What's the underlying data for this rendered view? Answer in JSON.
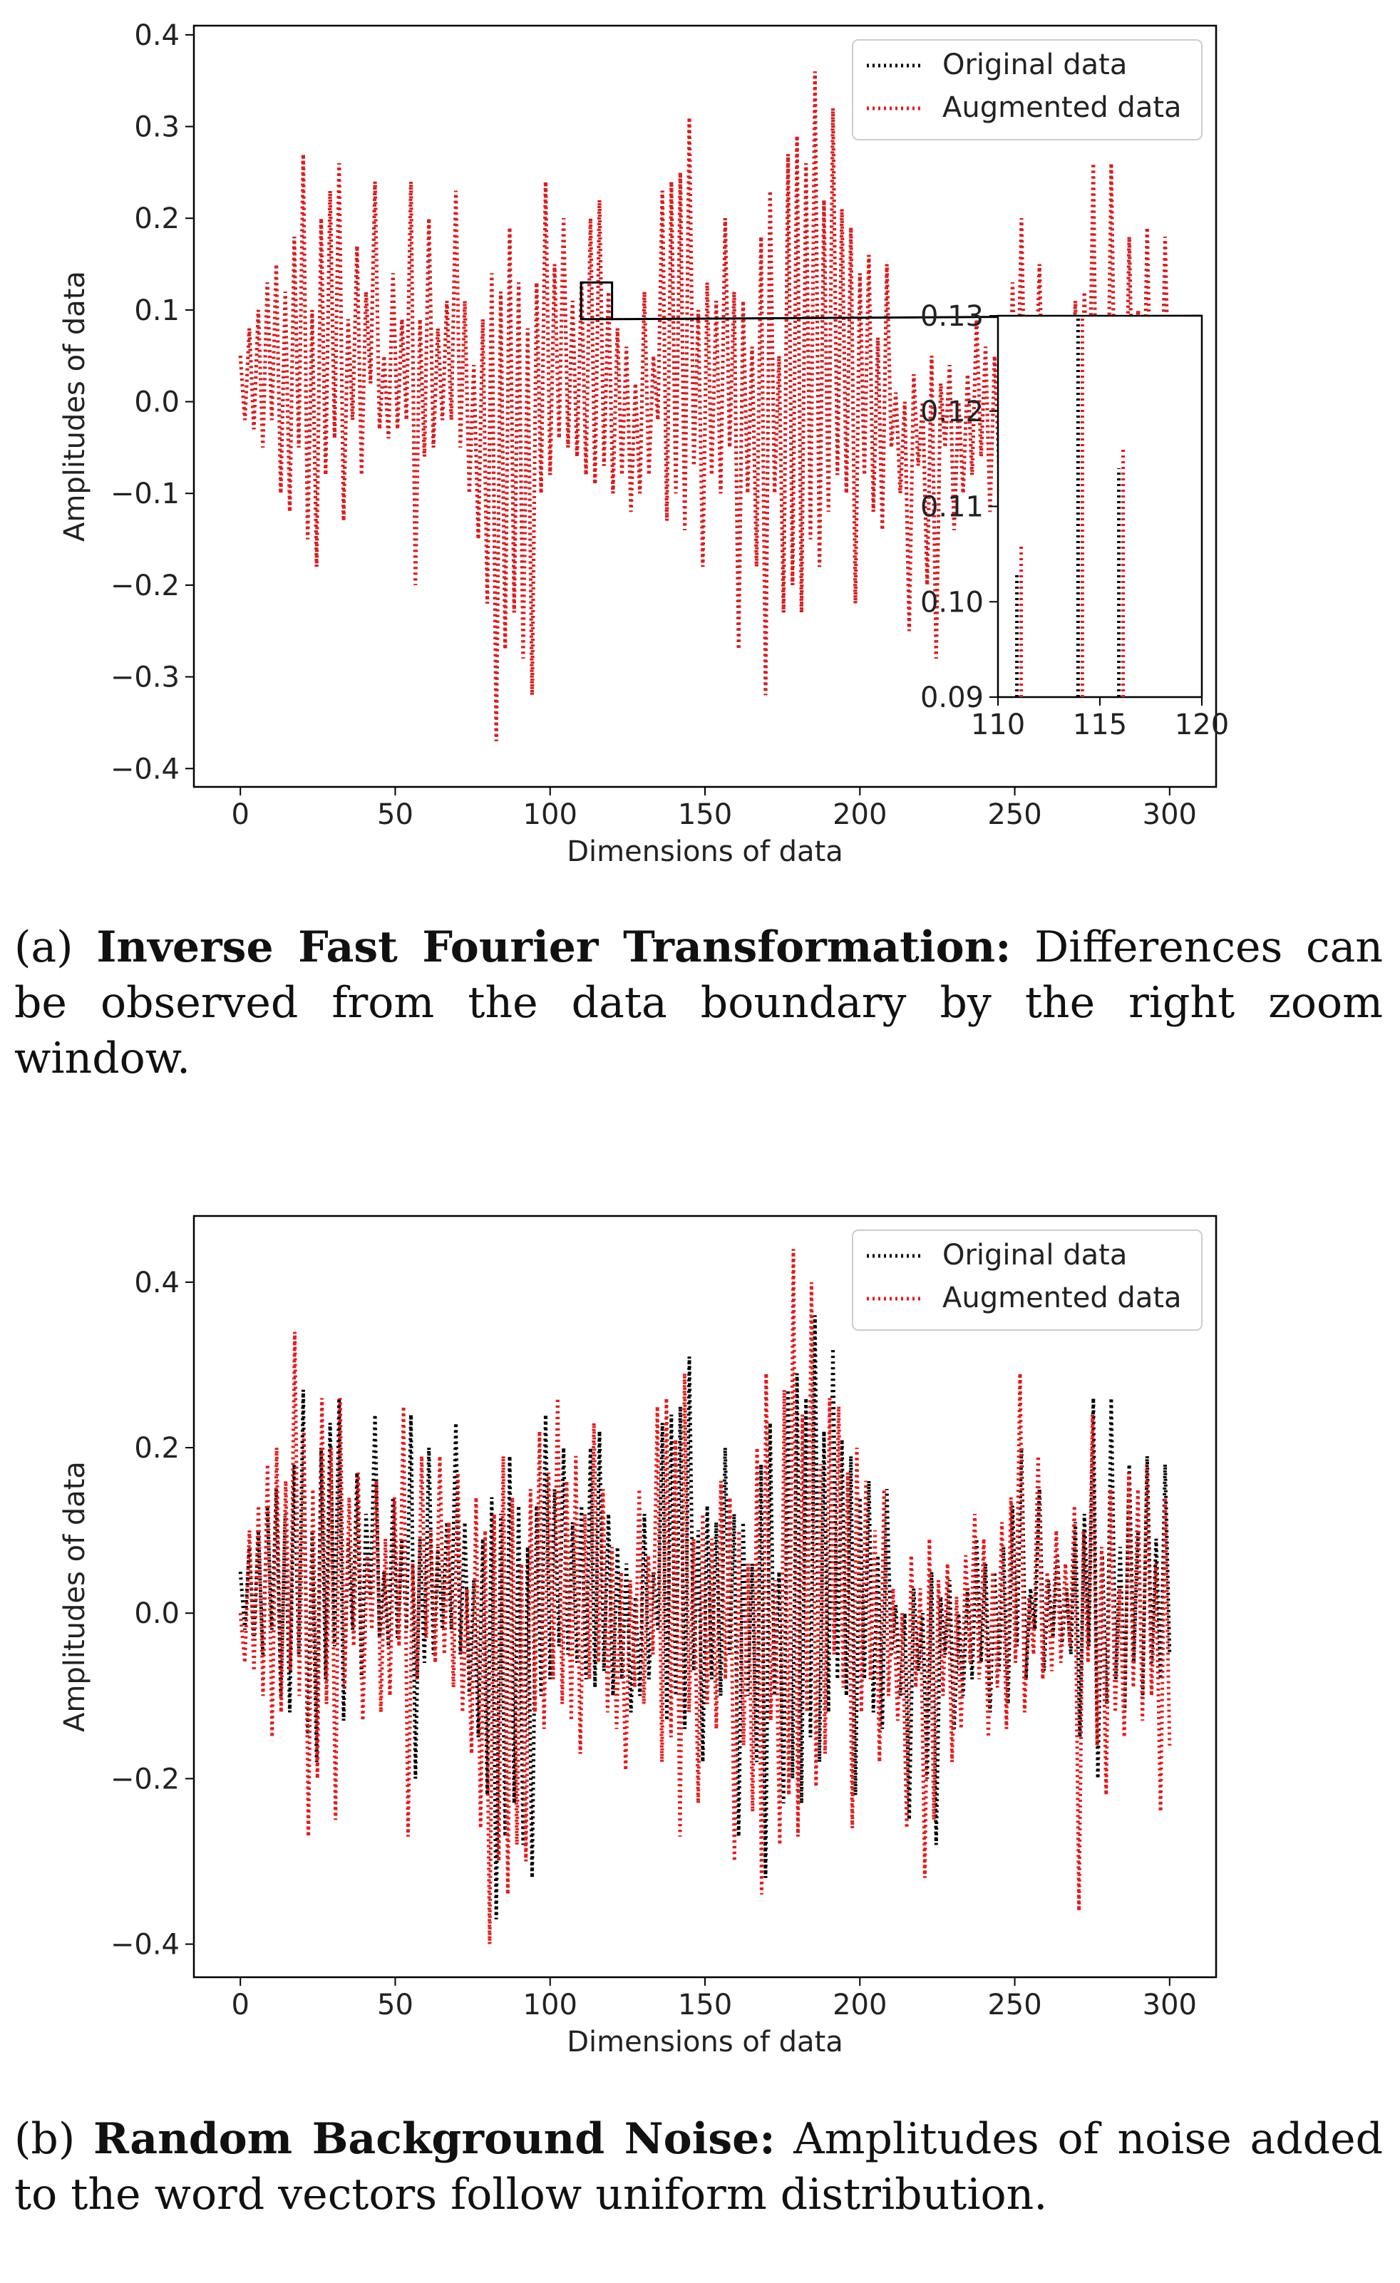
{
  "chart_data": [
    {
      "type": "line",
      "panel": "a",
      "xlabel": "Dimensions of data",
      "ylabel": "Amplitudes of data",
      "xlim": [
        -15,
        315
      ],
      "ylim": [
        -0.42,
        0.41
      ],
      "xticks": [
        0,
        50,
        100,
        150,
        200,
        250,
        300
      ],
      "yticks": [
        -0.4,
        -0.3,
        -0.2,
        -0.1,
        0.0,
        0.1,
        0.2,
        0.3,
        0.4
      ],
      "ytick_labels": [
        "−0.4",
        "−0.3",
        "−0.2",
        "−0.1",
        "0.0",
        "0.1",
        "0.2",
        "0.3",
        "0.4"
      ],
      "legend_position": "top-right",
      "grid": false,
      "series": [
        {
          "name": "Original data",
          "color": "#000000",
          "style": "dotted",
          "values": [
            0.05,
            -0.02,
            0.08,
            -0.03,
            0.1,
            -0.05,
            0.13,
            -0.02,
            0.15,
            -0.1,
            0.12,
            -0.12,
            0.18,
            -0.05,
            0.27,
            -0.15,
            0.1,
            -0.18,
            0.2,
            -0.08,
            0.23,
            -0.04,
            0.26,
            -0.13,
            0.09,
            -0.02,
            0.17,
            -0.08,
            0.12,
            0.02,
            0.24,
            -0.03,
            0.05,
            -0.04,
            0.14,
            -0.03,
            0.09,
            -0.02,
            0.24,
            -0.2,
            0.09,
            -0.06,
            0.2,
            -0.05,
            0.08,
            -0.02,
            0.11,
            -0.02,
            0.23,
            -0.05,
            0.11,
            -0.1,
            0.04,
            -0.15,
            0.09,
            -0.22,
            0.14,
            -0.37,
            0.12,
            -0.27,
            0.19,
            -0.23,
            0.13,
            -0.28,
            0.08,
            -0.32,
            0.13,
            -0.1,
            0.24,
            -0.08,
            0.15,
            -0.04,
            0.2,
            -0.05,
            0.11,
            -0.06,
            0.13,
            -0.08,
            0.2,
            -0.09,
            0.22,
            -0.07,
            0.12,
            -0.1,
            0.08,
            -0.08,
            0.06,
            -0.12,
            0.02,
            -0.1,
            0.12,
            -0.08,
            0.05,
            -0.02,
            0.23,
            -0.13,
            0.24,
            -0.1,
            0.25,
            -0.14,
            0.31,
            -0.07,
            0.1,
            -0.18,
            0.13,
            -0.08,
            0.11,
            -0.1,
            0.2,
            -0.05,
            0.12,
            -0.27,
            0.11,
            -0.1,
            0.06,
            -0.18,
            0.18,
            -0.32,
            0.23,
            -0.1,
            0.05,
            -0.23,
            0.27,
            -0.2,
            0.29,
            -0.23,
            0.26,
            -0.15,
            0.36,
            -0.18,
            0.22,
            -0.12,
            0.32,
            -0.08,
            0.21,
            -0.1,
            0.19,
            -0.22,
            0.14,
            -0.08,
            0.16,
            -0.12,
            0.07,
            -0.14,
            0.15,
            -0.05,
            0.01,
            -0.1,
            0.0,
            -0.25,
            0.03,
            -0.07,
            0.0,
            -0.2,
            0.05,
            -0.28,
            0.02,
            -0.05,
            0.04,
            -0.14,
            0.0,
            -0.1,
            0.03,
            -0.08,
            0.09,
            -0.06,
            0.06,
            -0.12,
            0.05,
            -0.07,
            0.08,
            -0.11,
            0.13,
            -0.04,
            0.2,
            -0.08,
            0.03,
            -0.02,
            0.15,
            -0.07,
            0.04,
            -0.03,
            0.07,
            -0.04,
            0.03,
            -0.05,
            0.11,
            -0.15,
            0.12,
            -0.04,
            0.26,
            -0.2,
            0.07,
            -0.11,
            0.26,
            -0.08,
            0.08,
            -0.12,
            0.18,
            -0.06,
            0.1,
            -0.1,
            0.19,
            -0.06,
            0.09,
            -0.08,
            0.18,
            -0.05
          ]
        },
        {
          "name": "Augmented data",
          "color": "#e8191a",
          "style": "dotted",
          "values": [
            0.05,
            -0.02,
            0.08,
            -0.03,
            0.1,
            -0.05,
            0.13,
            -0.02,
            0.15,
            -0.1,
            0.12,
            -0.12,
            0.18,
            -0.05,
            0.27,
            -0.15,
            0.1,
            -0.18,
            0.2,
            -0.08,
            0.23,
            -0.04,
            0.26,
            -0.13,
            0.09,
            -0.02,
            0.17,
            -0.08,
            0.12,
            0.02,
            0.24,
            -0.03,
            0.05,
            -0.04,
            0.14,
            -0.03,
            0.09,
            -0.02,
            0.24,
            -0.2,
            0.09,
            -0.06,
            0.2,
            -0.05,
            0.08,
            -0.02,
            0.11,
            -0.02,
            0.23,
            -0.05,
            0.11,
            -0.1,
            0.04,
            -0.15,
            0.09,
            -0.22,
            0.14,
            -0.37,
            0.12,
            -0.27,
            0.19,
            -0.23,
            0.13,
            -0.28,
            0.08,
            -0.32,
            0.13,
            -0.1,
            0.24,
            -0.08,
            0.15,
            -0.04,
            0.2,
            -0.05,
            0.11,
            -0.06,
            0.13,
            -0.08,
            0.2,
            -0.09,
            0.22,
            -0.07,
            0.12,
            -0.1,
            0.08,
            -0.08,
            0.06,
            -0.12,
            0.02,
            -0.1,
            0.12,
            -0.08,
            0.05,
            -0.02,
            0.23,
            -0.13,
            0.24,
            -0.1,
            0.25,
            -0.14,
            0.31,
            -0.07,
            0.1,
            -0.18,
            0.13,
            -0.08,
            0.11,
            -0.1,
            0.2,
            -0.05,
            0.12,
            -0.27,
            0.11,
            -0.1,
            0.06,
            -0.18,
            0.18,
            -0.32,
            0.23,
            -0.1,
            0.05,
            -0.23,
            0.27,
            -0.2,
            0.29,
            -0.23,
            0.26,
            -0.15,
            0.36,
            -0.18,
            0.22,
            -0.12,
            0.32,
            -0.08,
            0.21,
            -0.1,
            0.19,
            -0.22,
            0.14,
            -0.08,
            0.16,
            -0.12,
            0.07,
            -0.14,
            0.15,
            -0.05,
            0.01,
            -0.1,
            0.0,
            -0.25,
            0.03,
            -0.07,
            0.0,
            -0.2,
            0.05,
            -0.28,
            0.02,
            -0.05,
            0.04,
            -0.14,
            0.0,
            -0.1,
            0.03,
            -0.08,
            0.09,
            -0.06,
            0.06,
            -0.12,
            0.05,
            -0.07,
            0.08,
            -0.11,
            0.13,
            -0.04,
            0.2,
            -0.08,
            0.03,
            -0.02,
            0.15,
            -0.07,
            0.04,
            -0.03,
            0.07,
            -0.04,
            0.03,
            -0.05,
            0.11,
            -0.15,
            0.12,
            -0.04,
            0.26,
            -0.2,
            0.07,
            -0.11,
            0.26,
            -0.08,
            0.08,
            -0.12,
            0.18,
            -0.06,
            0.1,
            -0.1,
            0.19,
            -0.06,
            0.09,
            -0.08,
            0.18,
            -0.05
          ]
        }
      ],
      "inset": {
        "xlim": [
          110,
          120
        ],
        "ylim": [
          0.09,
          0.13
        ],
        "xticks": [
          110,
          115,
          120
        ],
        "yticks": [
          0.09,
          0.1,
          0.11,
          0.12,
          0.13
        ],
        "ytick_labels": [
          "0.09",
          "0.10",
          "0.11",
          "0.12",
          "0.13"
        ],
        "source_box": {
          "x": [
            110,
            120
          ],
          "y": [
            0.09,
            0.13
          ]
        },
        "series": [
          {
            "name": "Original data",
            "x": [
              111,
              114,
              116
            ],
            "y": [
              0.103,
              0.13,
              0.114
            ]
          },
          {
            "name": "Augmented data",
            "x": [
              111,
              114,
              116
            ],
            "y": [
              0.106,
              0.13,
              0.116
            ]
          }
        ]
      }
    },
    {
      "type": "line",
      "panel": "b",
      "xlabel": "Dimensions of data",
      "ylabel": "Amplitudes of data",
      "xlim": [
        -15,
        315
      ],
      "ylim": [
        -0.44,
        0.48
      ],
      "xticks": [
        0,
        50,
        100,
        150,
        200,
        250,
        300
      ],
      "yticks": [
        -0.4,
        -0.2,
        0.0,
        0.2,
        0.4
      ],
      "ytick_labels": [
        "−0.4",
        "−0.2",
        "0.0",
        "0.2",
        "0.4"
      ],
      "legend_position": "top-right",
      "grid": false,
      "series": [
        {
          "name": "Original data",
          "color": "#000000",
          "style": "dotted",
          "values": [
            0.05,
            -0.02,
            0.08,
            -0.03,
            0.1,
            -0.05,
            0.13,
            -0.02,
            0.15,
            -0.1,
            0.12,
            -0.12,
            0.18,
            -0.05,
            0.27,
            -0.15,
            0.1,
            -0.18,
            0.2,
            -0.08,
            0.23,
            -0.04,
            0.26,
            -0.13,
            0.09,
            -0.02,
            0.17,
            -0.08,
            0.12,
            0.02,
            0.24,
            -0.03,
            0.05,
            -0.04,
            0.14,
            -0.03,
            0.09,
            -0.02,
            0.24,
            -0.2,
            0.09,
            -0.06,
            0.2,
            -0.05,
            0.08,
            -0.02,
            0.11,
            -0.02,
            0.23,
            -0.05,
            0.11,
            -0.1,
            0.04,
            -0.15,
            0.09,
            -0.22,
            0.14,
            -0.37,
            0.12,
            -0.27,
            0.19,
            -0.23,
            0.13,
            -0.28,
            0.08,
            -0.32,
            0.13,
            -0.1,
            0.24,
            -0.08,
            0.15,
            -0.04,
            0.2,
            -0.05,
            0.11,
            -0.06,
            0.13,
            -0.08,
            0.2,
            -0.09,
            0.22,
            -0.07,
            0.12,
            -0.1,
            0.08,
            -0.08,
            0.06,
            -0.12,
            0.02,
            -0.1,
            0.12,
            -0.08,
            0.05,
            -0.02,
            0.23,
            -0.13,
            0.24,
            -0.1,
            0.25,
            -0.14,
            0.31,
            -0.07,
            0.1,
            -0.18,
            0.13,
            -0.08,
            0.11,
            -0.1,
            0.2,
            -0.05,
            0.12,
            -0.27,
            0.11,
            -0.1,
            0.06,
            -0.18,
            0.18,
            -0.32,
            0.23,
            -0.1,
            0.05,
            -0.23,
            0.27,
            -0.2,
            0.29,
            -0.23,
            0.26,
            -0.15,
            0.36,
            -0.18,
            0.22,
            -0.12,
            0.32,
            -0.08,
            0.21,
            -0.1,
            0.19,
            -0.22,
            0.14,
            -0.08,
            0.16,
            -0.12,
            0.07,
            -0.14,
            0.15,
            -0.05,
            0.01,
            -0.1,
            0.0,
            -0.25,
            0.03,
            -0.07,
            0.0,
            -0.2,
            0.05,
            -0.28,
            0.02,
            -0.05,
            0.04,
            -0.14,
            0.0,
            -0.1,
            0.03,
            -0.08,
            0.09,
            -0.06,
            0.06,
            -0.12,
            0.05,
            -0.07,
            0.08,
            -0.11,
            0.13,
            -0.04,
            0.2,
            -0.08,
            0.03,
            -0.02,
            0.15,
            -0.07,
            0.04,
            -0.03,
            0.07,
            -0.04,
            0.03,
            -0.05,
            0.11,
            -0.15,
            0.12,
            -0.04,
            0.26,
            -0.2,
            0.07,
            -0.11,
            0.26,
            -0.08,
            0.08,
            -0.12,
            0.18,
            -0.06,
            0.1,
            -0.1,
            0.19,
            -0.06,
            0.09,
            -0.08,
            0.18,
            -0.05
          ]
        },
        {
          "name": "Augmented data",
          "color": "#e8191a",
          "style": "dotted",
          "values": [
            0.0,
            -0.06,
            0.1,
            -0.07,
            0.13,
            -0.1,
            0.18,
            -0.15,
            0.2,
            -0.12,
            0.16,
            -0.07,
            0.34,
            -0.1,
            0.22,
            -0.27,
            0.15,
            -0.2,
            0.26,
            -0.11,
            0.2,
            -0.25,
            0.26,
            -0.09,
            0.14,
            -0.04,
            0.17,
            -0.13,
            0.07,
            -0.02,
            0.16,
            -0.12,
            0.09,
            -0.1,
            0.14,
            -0.04,
            0.25,
            -0.27,
            0.06,
            -0.08,
            0.19,
            -0.03,
            0.1,
            -0.06,
            0.19,
            -0.05,
            0.11,
            -0.09,
            0.17,
            -0.12,
            0.03,
            -0.17,
            0.14,
            -0.26,
            0.1,
            -0.4,
            0.12,
            -0.3,
            0.19,
            -0.34,
            0.14,
            -0.28,
            0.06,
            -0.3,
            0.15,
            -0.12,
            0.22,
            -0.14,
            0.17,
            -0.08,
            0.26,
            -0.11,
            0.16,
            -0.13,
            0.19,
            -0.17,
            0.12,
            -0.08,
            0.23,
            -0.06,
            0.15,
            -0.12,
            0.08,
            -0.14,
            0.05,
            -0.19,
            0.04,
            -0.09,
            0.15,
            -0.11,
            0.07,
            -0.05,
            0.25,
            -0.18,
            0.26,
            -0.15,
            0.21,
            -0.27,
            0.29,
            -0.12,
            0.09,
            -0.23,
            0.12,
            -0.11,
            0.09,
            -0.14,
            0.16,
            -0.08,
            0.14,
            -0.3,
            0.1,
            -0.16,
            0.06,
            -0.24,
            0.2,
            -0.34,
            0.29,
            -0.13,
            0.04,
            -0.28,
            0.27,
            -0.22,
            0.44,
            -0.27,
            0.24,
            -0.12,
            0.4,
            -0.21,
            0.18,
            -0.17,
            0.26,
            -0.05,
            0.25,
            -0.09,
            0.17,
            -0.26,
            0.2,
            -0.12,
            0.16,
            -0.08,
            0.1,
            -0.18,
            0.15,
            -0.1,
            0.03,
            -0.13,
            0.0,
            -0.26,
            0.07,
            -0.09,
            0.03,
            -0.32,
            0.09,
            -0.25,
            0.04,
            -0.1,
            0.06,
            -0.18,
            0.02,
            -0.14,
            0.07,
            -0.06,
            0.12,
            -0.08,
            0.09,
            -0.15,
            0.05,
            -0.09,
            0.11,
            -0.14,
            0.14,
            -0.06,
            0.29,
            -0.12,
            0.02,
            -0.05,
            0.19,
            -0.08,
            0.05,
            -0.07,
            0.1,
            -0.06,
            0.06,
            -0.04,
            0.13,
            -0.36,
            0.1,
            -0.06,
            0.24,
            -0.16,
            0.08,
            -0.22,
            0.15,
            -0.12,
            0.03,
            -0.15,
            0.17,
            -0.09,
            0.15,
            -0.13,
            0.18,
            -0.1,
            0.06,
            -0.24,
            0.14,
            -0.16
          ]
        }
      ]
    }
  ],
  "captions": {
    "a": {
      "prefix": "(a) ",
      "bold": "Inverse Fast Fourier Transformation:",
      "text": " Differences can be observed from the data boundary by the right zoom window."
    },
    "b": {
      "prefix": "(b) ",
      "bold": "Random Background Noise:",
      "text": " Amplitudes of noise added to the word vectors follow uniform distribution."
    }
  }
}
